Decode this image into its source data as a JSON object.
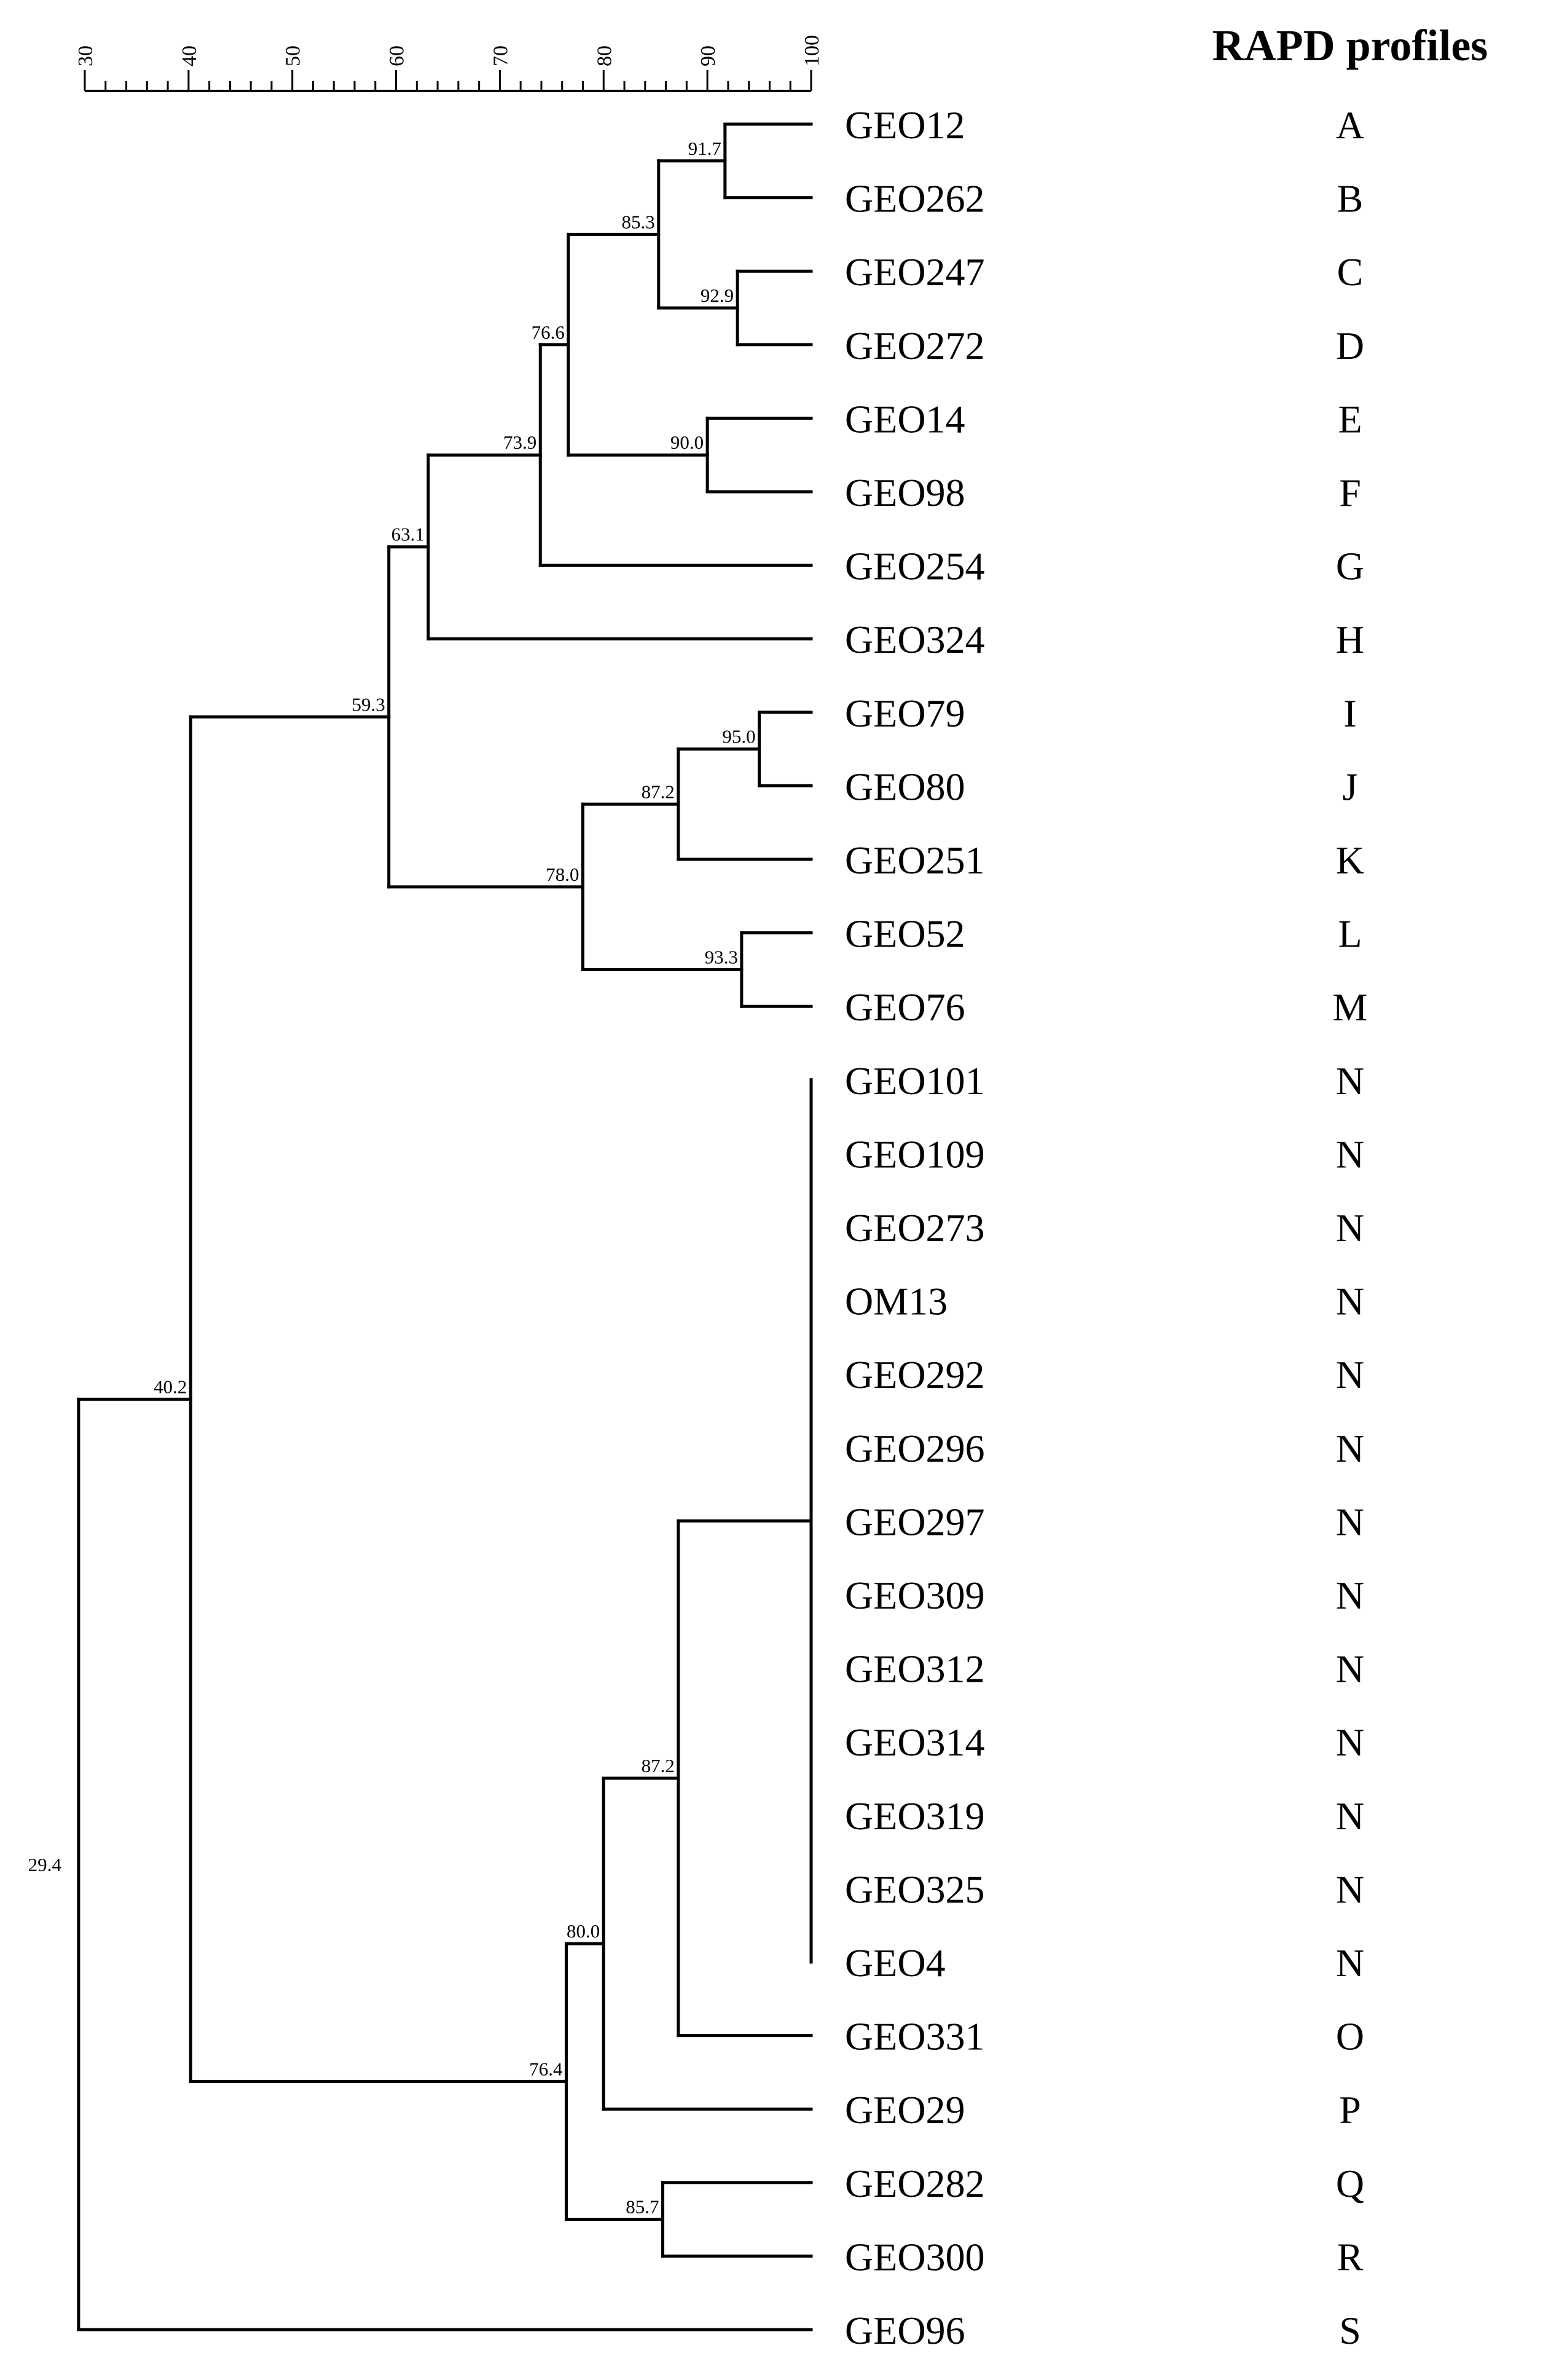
{
  "header": {
    "profiles_title": "RAPD profiles"
  },
  "chart_data": {
    "type": "dendrogram",
    "scale": {
      "min": 30,
      "max": 100,
      "major_ticks": [
        30,
        40,
        50,
        60,
        70,
        80,
        90,
        100
      ]
    },
    "leaves": [
      {
        "id": "GEO12",
        "profile": "A"
      },
      {
        "id": "GEO262",
        "profile": "B"
      },
      {
        "id": "GEO247",
        "profile": "C"
      },
      {
        "id": "GEO272",
        "profile": "D"
      },
      {
        "id": "GEO14",
        "profile": "E"
      },
      {
        "id": "GEO98",
        "profile": "F"
      },
      {
        "id": "GEO254",
        "profile": "G"
      },
      {
        "id": "GEO324",
        "profile": "H"
      },
      {
        "id": "GEO79",
        "profile": "I"
      },
      {
        "id": "GEO80",
        "profile": "J"
      },
      {
        "id": "GEO251",
        "profile": "K"
      },
      {
        "id": "GEO52",
        "profile": "L"
      },
      {
        "id": "GEO76",
        "profile": "M"
      },
      {
        "id": "GEO101",
        "profile": "N"
      },
      {
        "id": "GEO109",
        "profile": "N"
      },
      {
        "id": "GEO273",
        "profile": "N"
      },
      {
        "id": "OM13",
        "profile": "N"
      },
      {
        "id": "GEO292",
        "profile": "N"
      },
      {
        "id": "GEO296",
        "profile": "N"
      },
      {
        "id": "GEO297",
        "profile": "N"
      },
      {
        "id": "GEO309",
        "profile": "N"
      },
      {
        "id": "GEO312",
        "profile": "N"
      },
      {
        "id": "GEO314",
        "profile": "N"
      },
      {
        "id": "GEO319",
        "profile": "N"
      },
      {
        "id": "GEO325",
        "profile": "N"
      },
      {
        "id": "GEO4",
        "profile": "N"
      },
      {
        "id": "GEO331",
        "profile": "O"
      },
      {
        "id": "GEO29",
        "profile": "P"
      },
      {
        "id": "GEO282",
        "profile": "Q"
      },
      {
        "id": "GEO300",
        "profile": "R"
      },
      {
        "id": "GEO96",
        "profile": "S"
      }
    ],
    "tree": {
      "sim": 29.4,
      "label": "29.4",
      "children": [
        {
          "sim": 40.2,
          "label": "40.2",
          "children": [
            {
              "sim": 59.3,
              "label": "59.3",
              "children": [
                {
                  "sim": 63.1,
                  "label": "63.1",
                  "children": [
                    {
                      "sim": 73.9,
                      "label": "73.9",
                      "children": [
                        {
                          "sim": 76.6,
                          "label": "76.6",
                          "children": [
                            {
                              "sim": 85.3,
                              "label": "85.3",
                              "children": [
                                {
                                  "sim": 91.7,
                                  "label": "91.7",
                                  "children": [
                                    {
                                      "leaf": 0
                                    },
                                    {
                                      "leaf": 1
                                    }
                                  ]
                                },
                                {
                                  "sim": 92.9,
                                  "label": "92.9",
                                  "children": [
                                    {
                                      "leaf": 2
                                    },
                                    {
                                      "leaf": 3
                                    }
                                  ]
                                }
                              ]
                            },
                            {
                              "sim": 90.0,
                              "label": "90.0",
                              "children": [
                                {
                                  "leaf": 4
                                },
                                {
                                  "leaf": 5
                                }
                              ]
                            }
                          ]
                        },
                        {
                          "leaf": 6
                        }
                      ]
                    },
                    {
                      "leaf": 7
                    }
                  ]
                },
                {
                  "sim": 78.0,
                  "label": "78.0",
                  "children": [
                    {
                      "sim": 87.2,
                      "label": "87.2",
                      "children": [
                        {
                          "sim": 95.0,
                          "label": "95.0",
                          "children": [
                            {
                              "leaf": 8
                            },
                            {
                              "leaf": 9
                            }
                          ]
                        },
                        {
                          "leaf": 10
                        }
                      ]
                    },
                    {
                      "sim": 93.3,
                      "label": "93.3",
                      "children": [
                        {
                          "leaf": 11
                        },
                        {
                          "leaf": 12
                        }
                      ]
                    }
                  ]
                }
              ]
            },
            {
              "sim": 76.4,
              "label": "76.4",
              "children": [
                {
                  "sim": 80.0,
                  "label": "80.0",
                  "children": [
                    {
                      "sim": 87.2,
                      "label": "87.2",
                      "children": [
                        {
                          "sim": 100,
                          "label": "",
                          "children": [
                            {
                              "leaf": 13
                            },
                            {
                              "leaf": 14
                            },
                            {
                              "leaf": 15
                            },
                            {
                              "leaf": 16
                            },
                            {
                              "leaf": 17
                            },
                            {
                              "leaf": 18
                            },
                            {
                              "leaf": 19
                            },
                            {
                              "leaf": 20
                            },
                            {
                              "leaf": 21
                            },
                            {
                              "leaf": 22
                            },
                            {
                              "leaf": 23
                            },
                            {
                              "leaf": 24
                            },
                            {
                              "leaf": 25
                            }
                          ]
                        },
                        {
                          "leaf": 26
                        }
                      ]
                    },
                    {
                      "leaf": 27
                    }
                  ]
                },
                {
                  "sim": 85.7,
                  "label": "85.7",
                  "children": [
                    {
                      "leaf": 28
                    },
                    {
                      "leaf": 29
                    }
                  ]
                }
              ]
            }
          ]
        },
        {
          "leaf": 30
        }
      ]
    }
  }
}
